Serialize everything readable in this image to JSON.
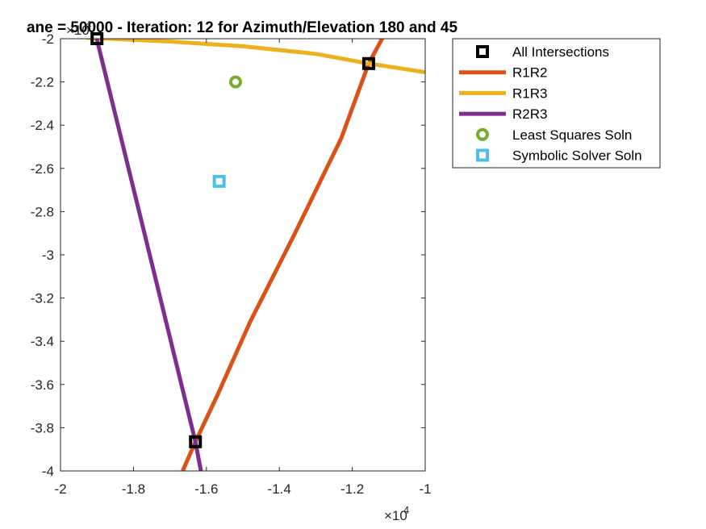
{
  "chart_data": {
    "type": "line",
    "title": "ane = 50000 - Iteration: 12 for Azimuth/Elevation 180 and 45",
    "xlim": [
      -20000,
      -10000
    ],
    "ylim": [
      -40000,
      -20000
    ],
    "x_tick_labels": [
      "-2",
      "-1.8",
      "-1.6",
      "-1.4",
      "-1.2",
      "-1"
    ],
    "y_tick_labels": [
      "-2",
      "-2.2",
      "-2.4",
      "-2.6",
      "-2.8",
      "-3",
      "-3.2",
      "-3.4",
      "-3.6",
      "-3.8",
      "-4"
    ],
    "x_exponent": "×10",
    "x_exponent_power": "4",
    "y_exponent": "×10",
    "y_exponent_power": "4",
    "grid": false,
    "legend_position": "outside-top-right",
    "series": [
      {
        "name": "All Intersections",
        "kind": "marker-square",
        "color": "#000000",
        "x": [
          -19000,
          -11550,
          -16300
        ],
        "y": [
          -20000,
          -21150,
          -38650
        ]
      },
      {
        "name": "R1R2",
        "kind": "line",
        "color": "#D95319",
        "x": [
          -16650,
          -16300,
          -15700,
          -14800,
          -13600,
          -12300,
          -11550,
          -11150
        ],
        "y": [
          -40000,
          -38650,
          -36500,
          -33100,
          -29100,
          -24600,
          -21150,
          -19900
        ]
      },
      {
        "name": "R1R3",
        "kind": "line",
        "color": "#EDB120",
        "x": [
          -19300,
          -17000,
          -15000,
          -13000,
          -11550,
          -10000
        ],
        "y": [
          -19950,
          -20130,
          -20350,
          -20700,
          -21150,
          -21550
        ]
      },
      {
        "name": "R2R3",
        "kind": "line",
        "color": "#7E2F8E",
        "x": [
          -19050,
          -17700,
          -16300,
          -16150
        ],
        "y": [
          -19700,
          -29000,
          -38650,
          -40000
        ]
      },
      {
        "name": "Least Squares Soln",
        "kind": "marker-circle",
        "color": "#77AC30",
        "x": [
          -15200
        ],
        "y": [
          -22000
        ]
      },
      {
        "name": "Symbolic Solver Soln",
        "kind": "marker-square-filled",
        "color": "#4DBEEE",
        "x": [
          -15650
        ],
        "y": [
          -26600
        ]
      }
    ]
  }
}
